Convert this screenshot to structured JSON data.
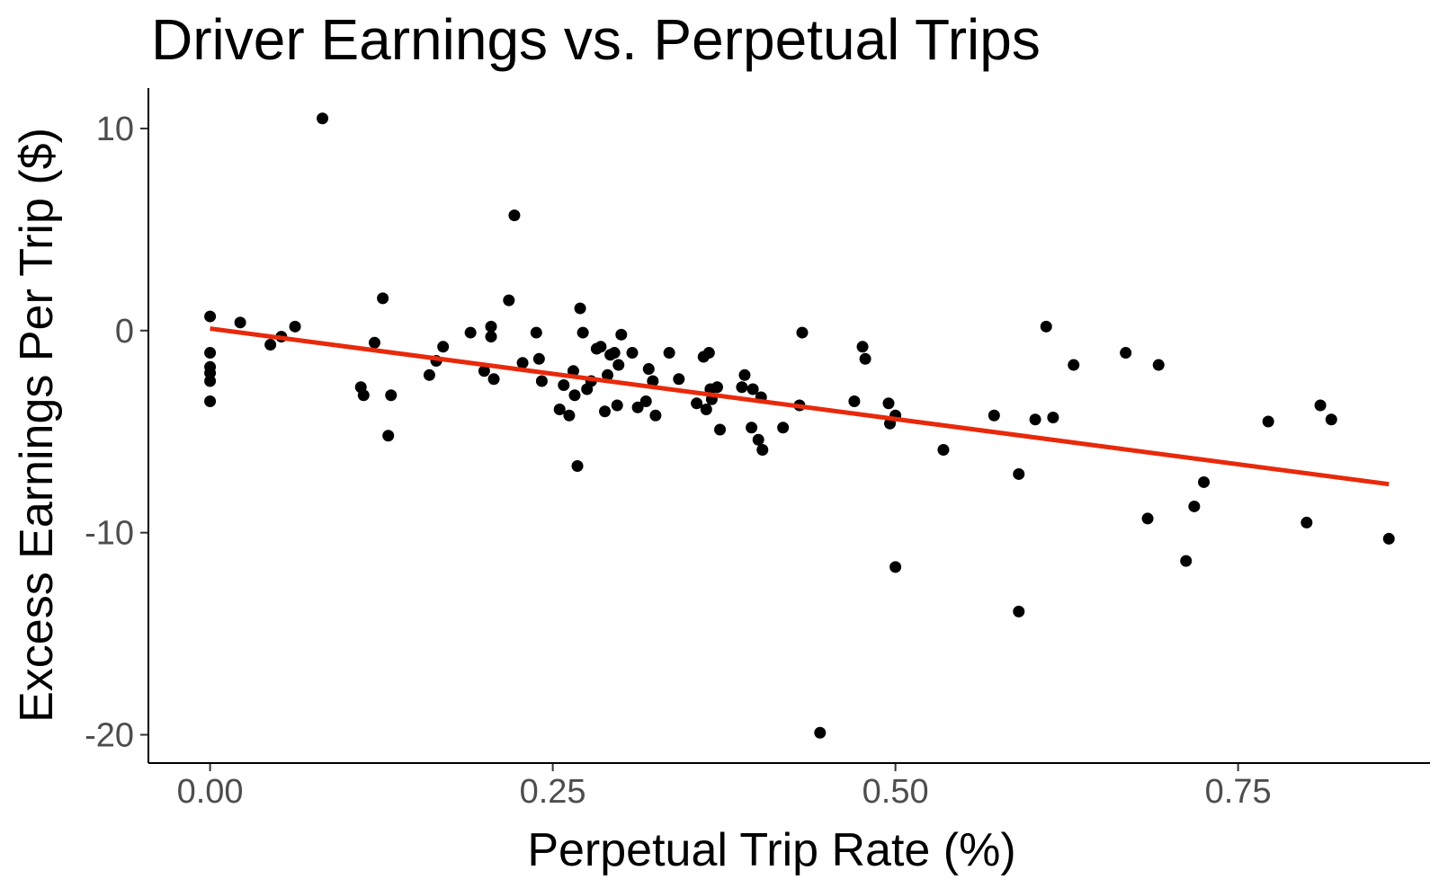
{
  "chart_data": {
    "type": "scatter",
    "title": "Driver Earnings vs. Perpetual Trips",
    "xlabel": "Perpetual Trip Rate (%)",
    "ylabel": "Excess Earnings Per Trip ($)",
    "xlim": [
      -0.045,
      0.89
    ],
    "ylim": [
      -21.4,
      12.0
    ],
    "x_ticks": [
      0,
      0.25,
      0.5,
      0.75
    ],
    "x_tick_labels": [
      "0.00",
      "0.25",
      "0.50",
      "0.75"
    ],
    "y_ticks": [
      -20,
      -10,
      0,
      10
    ],
    "y_tick_labels": [
      "-20",
      "-10",
      "0",
      "10"
    ],
    "grid": false,
    "legend": "none",
    "colors": {
      "points": "#000000",
      "trend_line": "#e8290b",
      "tick_labels": "#4d4d4d"
    },
    "trend_line": {
      "x": [
        0.0,
        0.86
      ],
      "y": [
        0.1,
        -7.6
      ]
    },
    "points": [
      {
        "x": 0.0,
        "y": 0.7
      },
      {
        "x": 0.0,
        "y": -1.1
      },
      {
        "x": 0.0,
        "y": -1.8
      },
      {
        "x": 0.0,
        "y": -2.1
      },
      {
        "x": 0.0,
        "y": -2.5
      },
      {
        "x": 0.0,
        "y": -3.5
      },
      {
        "x": 0.022,
        "y": 0.4
      },
      {
        "x": 0.044,
        "y": -0.7
      },
      {
        "x": 0.052,
        "y": -0.3
      },
      {
        "x": 0.062,
        "y": 0.2
      },
      {
        "x": 0.082,
        "y": 10.5
      },
      {
        "x": 0.11,
        "y": -2.8
      },
      {
        "x": 0.112,
        "y": -3.2
      },
      {
        "x": 0.12,
        "y": -0.6
      },
      {
        "x": 0.126,
        "y": 1.6
      },
      {
        "x": 0.13,
        "y": -5.2
      },
      {
        "x": 0.132,
        "y": -3.2
      },
      {
        "x": 0.16,
        "y": -2.2
      },
      {
        "x": 0.165,
        "y": -1.5
      },
      {
        "x": 0.17,
        "y": -0.8
      },
      {
        "x": 0.19,
        "y": -0.1
      },
      {
        "x": 0.2,
        "y": -2.0
      },
      {
        "x": 0.205,
        "y": 0.2
      },
      {
        "x": 0.205,
        "y": -0.3
      },
      {
        "x": 0.207,
        "y": -2.4
      },
      {
        "x": 0.218,
        "y": 1.5
      },
      {
        "x": 0.222,
        "y": 5.7
      },
      {
        "x": 0.228,
        "y": -1.6
      },
      {
        "x": 0.238,
        "y": -0.1
      },
      {
        "x": 0.24,
        "y": -1.4
      },
      {
        "x": 0.242,
        "y": -2.5
      },
      {
        "x": 0.255,
        "y": -3.9
      },
      {
        "x": 0.258,
        "y": -2.7
      },
      {
        "x": 0.262,
        "y": -4.2
      },
      {
        "x": 0.265,
        "y": -2.0
      },
      {
        "x": 0.266,
        "y": -3.2
      },
      {
        "x": 0.268,
        "y": -6.7
      },
      {
        "x": 0.27,
        "y": 1.1
      },
      {
        "x": 0.272,
        "y": -0.1
      },
      {
        "x": 0.275,
        "y": -2.9
      },
      {
        "x": 0.278,
        "y": -2.5
      },
      {
        "x": 0.282,
        "y": -0.9
      },
      {
        "x": 0.285,
        "y": -0.8
      },
      {
        "x": 0.288,
        "y": -4.0
      },
      {
        "x": 0.29,
        "y": -2.2
      },
      {
        "x": 0.292,
        "y": -1.2
      },
      {
        "x": 0.295,
        "y": -1.1
      },
      {
        "x": 0.297,
        "y": -3.7
      },
      {
        "x": 0.298,
        "y": -1.7
      },
      {
        "x": 0.3,
        "y": -0.2
      },
      {
        "x": 0.308,
        "y": -1.1
      },
      {
        "x": 0.312,
        "y": -3.8
      },
      {
        "x": 0.318,
        "y": -3.5
      },
      {
        "x": 0.32,
        "y": -1.9
      },
      {
        "x": 0.323,
        "y": -2.5
      },
      {
        "x": 0.325,
        "y": -4.2
      },
      {
        "x": 0.335,
        "y": -1.1
      },
      {
        "x": 0.342,
        "y": -2.4
      },
      {
        "x": 0.355,
        "y": -3.6
      },
      {
        "x": 0.36,
        "y": -1.3
      },
      {
        "x": 0.362,
        "y": -3.9
      },
      {
        "x": 0.364,
        "y": -1.1
      },
      {
        "x": 0.365,
        "y": -2.9
      },
      {
        "x": 0.366,
        "y": -3.4
      },
      {
        "x": 0.37,
        "y": -2.8
      },
      {
        "x": 0.372,
        "y": -4.9
      },
      {
        "x": 0.388,
        "y": -2.8
      },
      {
        "x": 0.39,
        "y": -2.2
      },
      {
        "x": 0.395,
        "y": -4.8
      },
      {
        "x": 0.396,
        "y": -2.9
      },
      {
        "x": 0.4,
        "y": -5.4
      },
      {
        "x": 0.402,
        "y": -3.3
      },
      {
        "x": 0.403,
        "y": -5.9
      },
      {
        "x": 0.418,
        "y": -4.8
      },
      {
        "x": 0.43,
        "y": -3.7
      },
      {
        "x": 0.432,
        "y": -0.1
      },
      {
        "x": 0.445,
        "y": -19.9
      },
      {
        "x": 0.47,
        "y": -3.5
      },
      {
        "x": 0.476,
        "y": -0.8
      },
      {
        "x": 0.478,
        "y": -1.4
      },
      {
        "x": 0.495,
        "y": -3.6
      },
      {
        "x": 0.496,
        "y": -4.6
      },
      {
        "x": 0.5,
        "y": -4.2
      },
      {
        "x": 0.5,
        "y": -11.7
      },
      {
        "x": 0.535,
        "y": -5.9
      },
      {
        "x": 0.572,
        "y": -4.2
      },
      {
        "x": 0.59,
        "y": -7.1
      },
      {
        "x": 0.59,
        "y": -13.9
      },
      {
        "x": 0.602,
        "y": -4.4
      },
      {
        "x": 0.61,
        "y": 0.2
      },
      {
        "x": 0.615,
        "y": -4.3
      },
      {
        "x": 0.63,
        "y": -1.7
      },
      {
        "x": 0.668,
        "y": -1.1
      },
      {
        "x": 0.684,
        "y": -9.3
      },
      {
        "x": 0.692,
        "y": -1.7
      },
      {
        "x": 0.712,
        "y": -11.4
      },
      {
        "x": 0.718,
        "y": -8.7
      },
      {
        "x": 0.725,
        "y": -7.5
      },
      {
        "x": 0.772,
        "y": -4.5
      },
      {
        "x": 0.8,
        "y": -9.5
      },
      {
        "x": 0.81,
        "y": -3.7
      },
      {
        "x": 0.818,
        "y": -4.4
      },
      {
        "x": 0.86,
        "y": -10.3
      }
    ]
  }
}
